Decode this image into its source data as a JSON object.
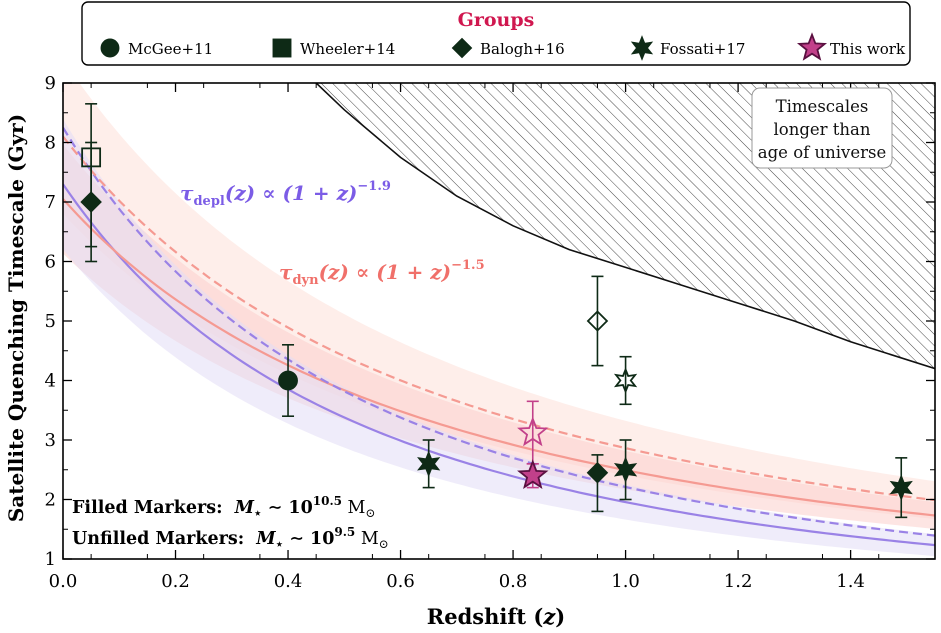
{
  "chart_data": {
    "type": "scatter",
    "xlabel_main": "Redshift",
    "xlabel_sym": "z",
    "ylabel": "Satellite Quenching Timescale (Gyr)",
    "xlim": [
      0.0,
      1.55
    ],
    "ylim": [
      1,
      9
    ],
    "xticks": [
      "0.0",
      "0.2",
      "0.4",
      "0.6",
      "0.8",
      "1.0",
      "1.2",
      "1.4"
    ],
    "xtick_values": [
      0.0,
      0.2,
      0.4,
      0.6,
      0.8,
      1.0,
      1.2,
      1.4
    ],
    "yticks": [
      "1",
      "2",
      "3",
      "4",
      "5",
      "6",
      "7",
      "8",
      "9"
    ],
    "ytick_values": [
      1,
      2,
      3,
      4,
      5,
      6,
      7,
      8,
      9
    ],
    "legend": {
      "title": "Groups",
      "position": "top-center",
      "entries": [
        {
          "label": "McGee+11",
          "marker": "circle"
        },
        {
          "label": "Wheeler+14",
          "marker": "square"
        },
        {
          "label": "Balogh+16",
          "marker": "diamond"
        },
        {
          "label": "Fossati+17",
          "marker": "star6"
        },
        {
          "label": "This work",
          "marker": "star5"
        }
      ]
    },
    "region": {
      "label_lines": [
        "Timescales",
        "longer than",
        "age of universe"
      ],
      "boundary": [
        [
          0.45,
          9.0
        ],
        [
          0.5,
          8.55
        ],
        [
          0.6,
          7.75
        ],
        [
          0.7,
          7.1
        ],
        [
          0.8,
          6.6
        ],
        [
          0.9,
          6.2
        ],
        [
          1.0,
          5.9
        ],
        [
          1.1,
          5.6
        ],
        [
          1.2,
          5.3
        ],
        [
          1.3,
          5.0
        ],
        [
          1.4,
          4.65
        ],
        [
          1.55,
          4.2
        ]
      ]
    },
    "curves": [
      {
        "name": "tau_depl",
        "norm": 7.3,
        "exponent": -1.9,
        "style": "solid",
        "color": "#9a82e6"
      },
      {
        "name": "tau_dyn",
        "norm": 7.05,
        "exponent": -1.5,
        "style": "solid",
        "color": "#f59a92"
      },
      {
        "name": "tau_depl_lowmass",
        "norm": 8.25,
        "exponent": -1.9,
        "style": "dashed",
        "color": "#9a82e6"
      },
      {
        "name": "tau_dyn_lowmass",
        "norm": 8.1,
        "exponent": -1.5,
        "style": "dashed",
        "color": "#f59a92"
      }
    ],
    "bands": [
      {
        "curve": "tau_dyn_lowmass",
        "frac": 0.16,
        "color": "#fde0d8"
      },
      {
        "curve": "tau_dyn",
        "frac": 0.13,
        "color": "#fbd0cc"
      },
      {
        "curve": "tau_depl",
        "frac": 0.15,
        "color": "#e2dcf6"
      }
    ],
    "annotations": {
      "depl": {
        "sym": "τ",
        "sub": "depl",
        "body": "(z) ∝ (1 + z)",
        "sup": "−1.9",
        "color": "#7b5ce6"
      },
      "dyn": {
        "sym": "τ",
        "sub": "dyn",
        "body": "(z) ∝ (1 + z)",
        "sup": "−1.5",
        "color": "#f0706a"
      },
      "filled": {
        "label": "Filled Markers:",
        "formula": "M",
        "star": "⋆",
        "sim": " ∼ 10",
        "exp": "10.5",
        "unit": " M",
        "sun": "⊙"
      },
      "unfilled": {
        "label": "Unfilled Markers:",
        "formula": "M",
        "star": "⋆",
        "sim": " ∼ 10",
        "exp": "9.5",
        "unit": " M",
        "sun": "⊙"
      }
    },
    "points": [
      {
        "group": "Wheeler+14",
        "marker": "square",
        "filled": false,
        "x": 0.05,
        "y": 7.75,
        "ylo": 6.25,
        "yhi": 8.65
      },
      {
        "group": "Balogh+16",
        "marker": "diamond",
        "filled": true,
        "x": 0.05,
        "y": 7.0,
        "ylo": 6.0,
        "yhi": 8.0
      },
      {
        "group": "McGee+11",
        "marker": "circle",
        "filled": true,
        "x": 0.4,
        "y": 4.0,
        "ylo": 3.4,
        "yhi": 4.6
      },
      {
        "group": "Fossati+17",
        "marker": "star6",
        "filled": true,
        "x": 0.65,
        "y": 2.6,
        "ylo": 2.2,
        "yhi": 3.0
      },
      {
        "group": "This work",
        "marker": "star5",
        "filled": false,
        "x": 0.835,
        "y": 3.12,
        "ylo": 2.6,
        "yhi": 3.65
      },
      {
        "group": "This work",
        "marker": "star5",
        "filled": true,
        "x": 0.835,
        "y": 2.4,
        "ylo": 2.2,
        "yhi": 2.6
      },
      {
        "group": "Balogh+16",
        "marker": "diamond",
        "filled": false,
        "x": 0.95,
        "y": 5.0,
        "ylo": 4.25,
        "yhi": 5.75
      },
      {
        "group": "Balogh+16",
        "marker": "diamond",
        "filled": true,
        "x": 0.95,
        "y": 2.45,
        "ylo": 1.8,
        "yhi": 2.75
      },
      {
        "group": "Fossati+17",
        "marker": "star6",
        "filled": false,
        "x": 1.0,
        "y": 4.0,
        "ylo": 3.6,
        "yhi": 4.4
      },
      {
        "group": "Fossati+17",
        "marker": "star6",
        "filled": true,
        "x": 1.0,
        "y": 2.5,
        "ylo": 2.0,
        "yhi": 3.0
      },
      {
        "group": "Fossati+17",
        "marker": "star6",
        "filled": true,
        "x": 1.49,
        "y": 2.2,
        "ylo": 1.7,
        "yhi": 2.7
      }
    ],
    "colors": {
      "dark": "#0e2a16",
      "thiswork": "#c2408a",
      "thiswork_edge": "#5a1040",
      "title": "#d0174f"
    }
  }
}
